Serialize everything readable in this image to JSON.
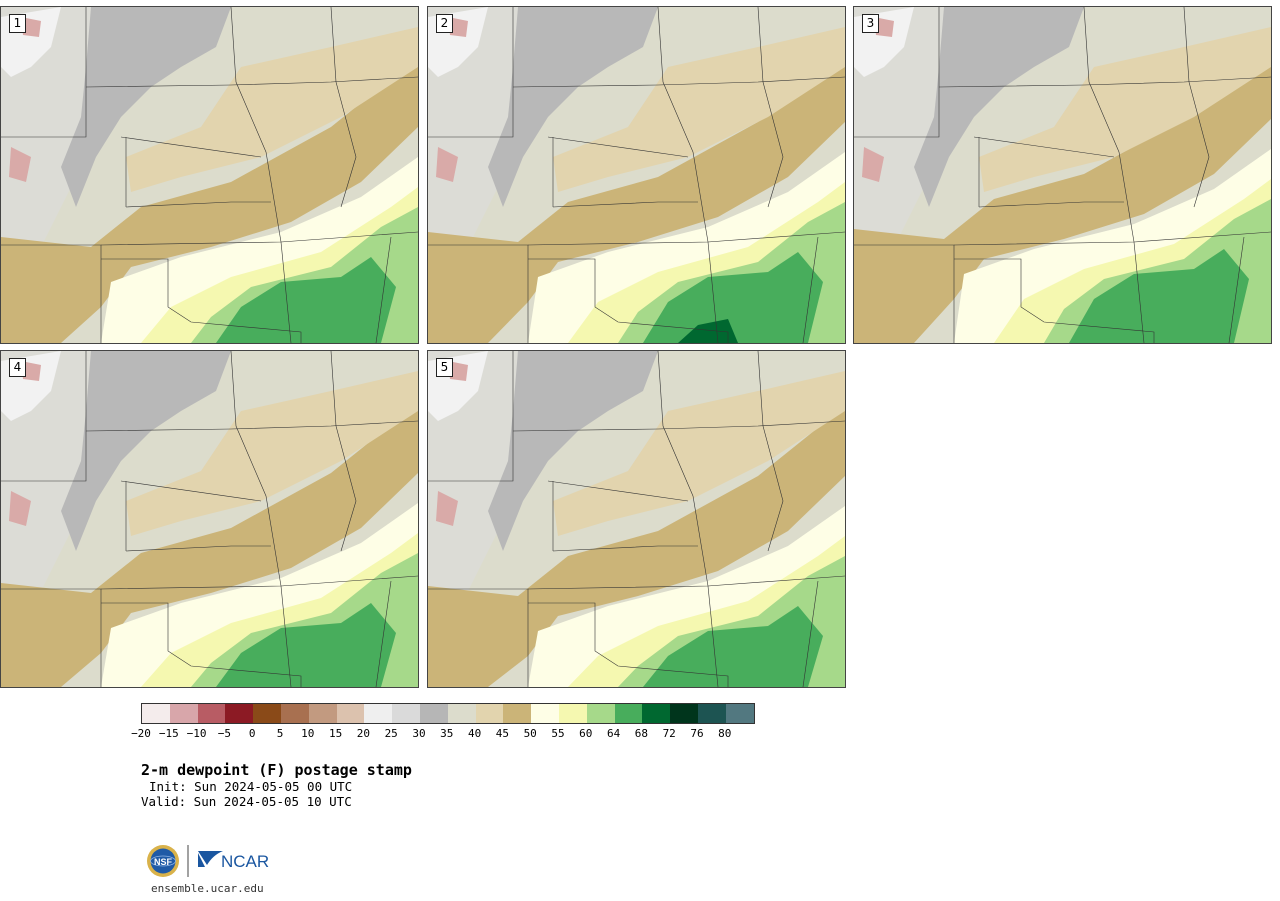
{
  "panels": [
    {
      "label": "1"
    },
    {
      "label": "2"
    },
    {
      "label": "3"
    },
    {
      "label": "4"
    },
    {
      "label": "5"
    }
  ],
  "colorbar": {
    "colors": [
      "#f4ecec",
      "#d8a6aa",
      "#b85c64",
      "#8c1a24",
      "#8a4a18",
      "#a87050",
      "#c29a80",
      "#dcc2ae",
      "#efefef",
      "#dadada",
      "#b6b6b6",
      "#dcdccc",
      "#e2d4ae",
      "#cbb478",
      "#fefee6",
      "#f5f8b0",
      "#a6d98a",
      "#48ad5c",
      "#006830",
      "#00351c",
      "#1d5452",
      "#527880"
    ],
    "tick_labels": [
      "−20",
      "−15",
      "−10",
      "−5",
      "0",
      "5",
      "10",
      "15",
      "20",
      "25",
      "30",
      "35",
      "40",
      "45",
      "50",
      "55",
      "60",
      "64",
      "68",
      "72",
      "76",
      "80"
    ]
  },
  "title": "2-m dewpoint (F) postage stamp",
  "init": "Init: Sun 2024-05-05 00 UTC",
  "valid": "Valid: Sun 2024-05-05 10 UTC",
  "logo": {
    "nsf": "NSF",
    "ncar": "NCAR"
  },
  "website": "ensemble.ucar.edu"
}
